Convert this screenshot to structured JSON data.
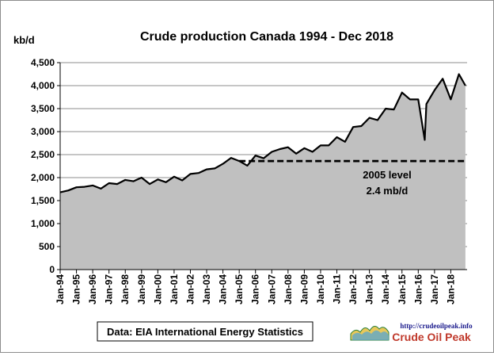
{
  "chart_data": {
    "type": "area",
    "title": "Crude  production Canada 1994 - Dec 2018",
    "ylabel": "kb/d",
    "xlabel": "",
    "ylim": [
      0,
      4500
    ],
    "yticks": [
      0,
      500,
      1000,
      1500,
      2000,
      2500,
      3000,
      3500,
      4000,
      4500
    ],
    "ytick_labels": [
      "0",
      "500",
      "1,000",
      "1,500",
      "2,000",
      "2,500",
      "3,000",
      "3,500",
      "4,000",
      "4,500"
    ],
    "xtick_labels": [
      "Jan-94",
      "Jan-95",
      "Jan-96",
      "Jan-97",
      "Jan-98",
      "Jan-99",
      "Jan-00",
      "Jan-01",
      "Jan-02",
      "Jan-03",
      "Jan-04",
      "Jan-05",
      "Jan-06",
      "Jan-07",
      "Jan-08",
      "Jan-09",
      "Jan-10",
      "Jan-11",
      "Jan-12",
      "Jan-13",
      "Jan-14",
      "Jan-15",
      "Jan-16",
      "Jan-17",
      "Jan-18"
    ],
    "grid": true,
    "series": [
      {
        "color": "#000000",
        "fill": "#c0c0c0",
        "x": [
          1994.0,
          1994.5,
          1995.0,
          1995.5,
          1996.0,
          1996.5,
          1997.0,
          1997.5,
          1998.0,
          1998.5,
          1999.0,
          1999.5,
          2000.0,
          2000.5,
          2001.0,
          2001.5,
          2002.0,
          2002.5,
          2003.0,
          2003.5,
          2004.0,
          2004.5,
          2005.0,
          2005.5,
          2006.0,
          2006.5,
          2007.0,
          2007.5,
          2008.0,
          2008.5,
          2009.0,
          2009.5,
          2010.0,
          2010.5,
          2011.0,
          2011.5,
          2012.0,
          2012.5,
          2013.0,
          2013.5,
          2014.0,
          2014.5,
          2015.0,
          2015.5,
          2016.0,
          2016.4,
          2016.5,
          2017.0,
          2017.5,
          2018.0,
          2018.5,
          2018.9
        ],
        "values": [
          1680,
          1720,
          1790,
          1800,
          1830,
          1760,
          1880,
          1860,
          1950,
          1920,
          2000,
          1860,
          1960,
          1900,
          2020,
          1940,
          2080,
          2100,
          2180,
          2200,
          2300,
          2430,
          2360,
          2260,
          2480,
          2420,
          2560,
          2620,
          2660,
          2520,
          2640,
          2560,
          2700,
          2700,
          2880,
          2780,
          3100,
          3120,
          3300,
          3250,
          3500,
          3480,
          3850,
          3700,
          3700,
          2820,
          3600,
          3900,
          4150,
          3700,
          4250,
          4000
        ]
      }
    ],
    "reference_line": {
      "value": 2360,
      "label_line1": "2005 level",
      "label_line2": "2.4 mb/d"
    }
  },
  "source_label": "Data: EIA International Energy Statistics",
  "logo": {
    "url": "http://crudeoilpeak.info",
    "name": "Crude Oil Peak"
  },
  "colors": {
    "area": "#c0c0c0",
    "line": "#000000",
    "grid": "#8c8c8c",
    "brand": "#c0392b"
  }
}
